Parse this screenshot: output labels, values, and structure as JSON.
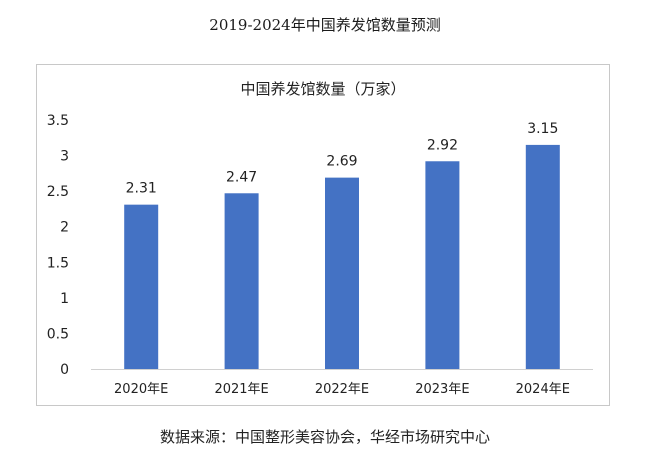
{
  "figure_title": "2019-2024年中国养发馆数量预测",
  "source_note": "数据来源：中国整形美容协会，华经市场研究中心",
  "chart_data": {
    "type": "bar",
    "title": "中国养发馆数量（万家）",
    "categories": [
      "2020年E",
      "2021年E",
      "2022年E",
      "2023年E",
      "2024年E"
    ],
    "series": [
      {
        "values": [
          2.31,
          2.47,
          2.69,
          2.92,
          3.15
        ]
      }
    ],
    "data_labels": [
      "2.31",
      "2.47",
      "2.69",
      "2.92",
      "3.15"
    ],
    "ylim": [
      0,
      3.5
    ],
    "yticks": [
      0,
      0.5,
      1,
      1.5,
      2,
      2.5,
      3,
      3.5
    ],
    "ytick_labels": [
      "0",
      "0.5",
      "1",
      "1.5",
      "2",
      "2.5",
      "3",
      "3.5"
    ],
    "grid": false,
    "legend": "none",
    "bar_color": "#4472c4"
  }
}
